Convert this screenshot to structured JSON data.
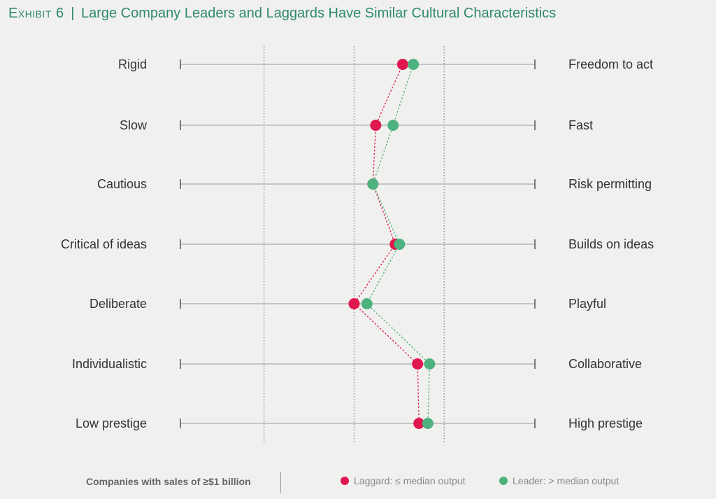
{
  "title": {
    "exhibit": "Exhibit 6",
    "separator": "|",
    "text": "Large Company Leaders and Laggards Have Similar Cultural Characteristics"
  },
  "colors": {
    "laggard": "#e0174f",
    "leader": "#4db27e",
    "title": "#2f8a6a"
  },
  "chart_data": {
    "type": "scatter",
    "rows": [
      {
        "left": "Rigid",
        "right": "Freedom to act"
      },
      {
        "left": "Slow",
        "right": "Fast"
      },
      {
        "left": "Cautious",
        "right": "Risk permitting"
      },
      {
        "left": "Critical of ideas",
        "right": "Builds on ideas"
      },
      {
        "left": "Deliberate",
        "right": "Playful"
      },
      {
        "left": "Individualistic",
        "right": "Collaborative"
      },
      {
        "left": "Low prestige",
        "right": "High prestige"
      }
    ],
    "xlim": [
      0,
      1
    ],
    "reference_lines": [
      0.236,
      0.49,
      0.744
    ],
    "series": [
      {
        "name": "Laggard: ≤ median output",
        "values": [
          0.627,
          0.551,
          0.543,
          0.606,
          0.49,
          0.669,
          0.673
        ]
      },
      {
        "name": "Leader: > median output",
        "values": [
          0.657,
          0.6,
          0.543,
          0.618,
          0.526,
          0.703,
          0.698
        ]
      }
    ],
    "grid": false,
    "legend_position": "bottom"
  },
  "legend": {
    "note": "Companies with sales of ≥$1 billion",
    "laggard_label": "Laggard: ≤ median output",
    "leader_label": "Leader: > median output"
  }
}
